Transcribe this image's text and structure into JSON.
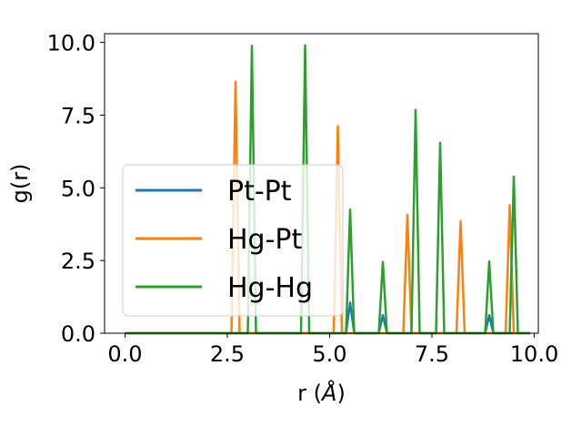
{
  "chart_data": {
    "type": "line",
    "xlabel_prefix": "r (",
    "xlabel_unit": "Å",
    "xlabel_suffix": ")",
    "ylabel": "g(r)",
    "xlim": [
      -0.5,
      10.1
    ],
    "ylim": [
      0,
      10.3
    ],
    "xticks": [
      0.0,
      2.5,
      5.0,
      7.5,
      10.0
    ],
    "xtick_labels": [
      "0.0",
      "2.5",
      "5.0",
      "7.5",
      "10.0"
    ],
    "yticks": [
      0.0,
      2.5,
      5.0,
      7.5,
      10.0
    ],
    "ytick_labels": [
      "0.0",
      "2.5",
      "5.0",
      "7.5",
      "10.0"
    ],
    "grid": false,
    "legend_position": "center-left",
    "series": [
      {
        "name": "Pt-Pt",
        "color": "#1f77b4",
        "x": [
          0.0,
          5.4,
          5.5,
          5.6,
          6.2,
          6.3,
          6.4,
          8.8,
          8.9,
          9.0,
          9.9
        ],
        "y": [
          0.0,
          0.0,
          1.05,
          0.0,
          0.0,
          0.62,
          0.0,
          0.0,
          0.62,
          0.0,
          0.0
        ]
      },
      {
        "name": "Hg-Pt",
        "color": "#ff7f0e",
        "x": [
          0.0,
          2.6,
          2.7,
          2.8,
          5.1,
          5.2,
          5.3,
          6.8,
          6.9,
          7.0,
          8.1,
          8.2,
          8.3,
          9.3,
          9.4,
          9.5,
          9.9
        ],
        "y": [
          0.0,
          0.0,
          8.65,
          0.0,
          0.0,
          7.12,
          0.0,
          0.0,
          4.07,
          0.0,
          0.0,
          3.85,
          0.0,
          0.0,
          4.4,
          0.0,
          0.0
        ]
      },
      {
        "name": "Hg-Hg",
        "color": "#2ca02c",
        "x": [
          0.0,
          3.0,
          3.1,
          3.2,
          4.3,
          4.4,
          4.5,
          5.4,
          5.5,
          5.6,
          6.2,
          6.3,
          6.4,
          7.0,
          7.1,
          7.2,
          7.6,
          7.7,
          7.8,
          8.8,
          8.9,
          9.0,
          9.4,
          9.5,
          9.6,
          9.9
        ],
        "y": [
          0.0,
          0.0,
          9.88,
          0.0,
          0.0,
          9.9,
          0.0,
          0.0,
          4.25,
          0.0,
          0.0,
          2.45,
          0.0,
          0.0,
          7.68,
          0.0,
          0.0,
          6.55,
          0.0,
          0.0,
          2.47,
          0.0,
          0.0,
          5.38,
          0.0,
          0.0
        ]
      }
    ]
  }
}
